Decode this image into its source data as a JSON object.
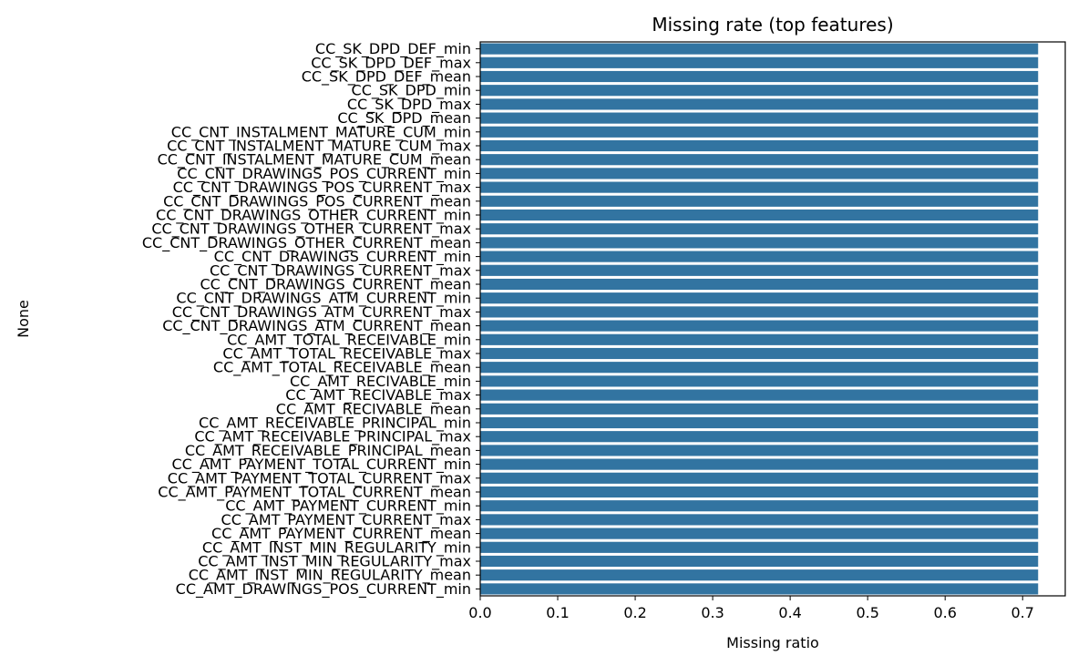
{
  "chart_data": {
    "type": "bar",
    "orientation": "horizontal",
    "title": "Missing rate (top features)",
    "xlabel": "Missing ratio",
    "ylabel": "None",
    "xlim": [
      0,
      0.755
    ],
    "xticks": [
      0.0,
      0.1,
      0.2,
      0.3,
      0.4,
      0.5,
      0.6,
      0.7
    ],
    "grid": false,
    "bar_color": "#3274a1",
    "categories": [
      "CC_SK_DPD_DEF_min",
      "CC_SK_DPD_DEF_max",
      "CC_SK_DPD_DEF_mean",
      "CC_SK_DPD_min",
      "CC_SK_DPD_max",
      "CC_SK_DPD_mean",
      "CC_CNT_INSTALMENT_MATURE_CUM_min",
      "CC_CNT_INSTALMENT_MATURE_CUM_max",
      "CC_CNT_INSTALMENT_MATURE_CUM_mean",
      "CC_CNT_DRAWINGS_POS_CURRENT_min",
      "CC_CNT_DRAWINGS_POS_CURRENT_max",
      "CC_CNT_DRAWINGS_POS_CURRENT_mean",
      "CC_CNT_DRAWINGS_OTHER_CURRENT_min",
      "CC_CNT_DRAWINGS_OTHER_CURRENT_max",
      "CC_CNT_DRAWINGS_OTHER_CURRENT_mean",
      "CC_CNT_DRAWINGS_CURRENT_min",
      "CC_CNT_DRAWINGS_CURRENT_max",
      "CC_CNT_DRAWINGS_CURRENT_mean",
      "CC_CNT_DRAWINGS_ATM_CURRENT_min",
      "CC_CNT_DRAWINGS_ATM_CURRENT_max",
      "CC_CNT_DRAWINGS_ATM_CURRENT_mean",
      "CC_AMT_TOTAL_RECEIVABLE_min",
      "CC_AMT_TOTAL_RECEIVABLE_max",
      "CC_AMT_TOTAL_RECEIVABLE_mean",
      "CC_AMT_RECIVABLE_min",
      "CC_AMT_RECIVABLE_max",
      "CC_AMT_RECIVABLE_mean",
      "CC_AMT_RECEIVABLE_PRINCIPAL_min",
      "CC_AMT_RECEIVABLE_PRINCIPAL_max",
      "CC_AMT_RECEIVABLE_PRINCIPAL_mean",
      "CC_AMT_PAYMENT_TOTAL_CURRENT_min",
      "CC_AMT_PAYMENT_TOTAL_CURRENT_max",
      "CC_AMT_PAYMENT_TOTAL_CURRENT_mean",
      "CC_AMT_PAYMENT_CURRENT_min",
      "CC_AMT_PAYMENT_CURRENT_max",
      "CC_AMT_PAYMENT_CURRENT_mean",
      "CC_AMT_INST_MIN_REGULARITY_min",
      "CC_AMT_INST_MIN_REGULARITY_max",
      "CC_AMT_INST_MIN_REGULARITY_mean",
      "CC_AMT_DRAWINGS_POS_CURRENT_min"
    ],
    "values": [
      0.72,
      0.72,
      0.72,
      0.72,
      0.72,
      0.72,
      0.72,
      0.72,
      0.72,
      0.72,
      0.72,
      0.72,
      0.72,
      0.72,
      0.72,
      0.72,
      0.72,
      0.72,
      0.72,
      0.72,
      0.72,
      0.72,
      0.72,
      0.72,
      0.72,
      0.72,
      0.72,
      0.72,
      0.72,
      0.72,
      0.72,
      0.72,
      0.72,
      0.72,
      0.72,
      0.72,
      0.72,
      0.72,
      0.72,
      0.72
    ]
  }
}
